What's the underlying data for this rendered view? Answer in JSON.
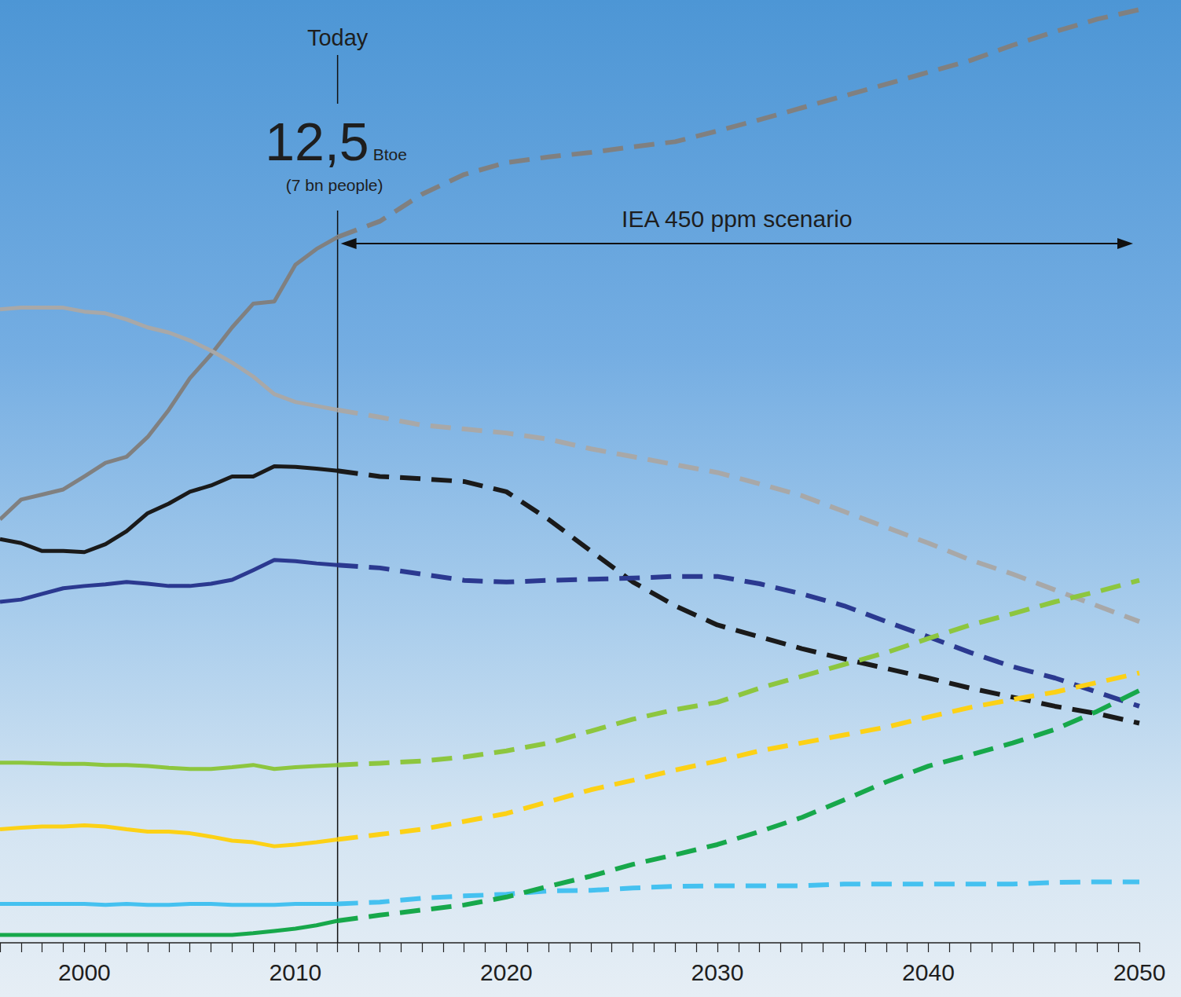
{
  "chart_data": {
    "type": "line",
    "x": [
      1996,
      1997,
      1998,
      1999,
      2000,
      2001,
      2002,
      2003,
      2004,
      2005,
      2006,
      2007,
      2008,
      2009,
      2010,
      2011,
      2012,
      2014,
      2016,
      2018,
      2020,
      2022,
      2024,
      2026,
      2028,
      2030,
      2032,
      2034,
      2036,
      2038,
      2040,
      2042,
      2044,
      2046,
      2048,
      2050
    ],
    "xlim": [
      1996,
      2050
    ],
    "xticks": [
      2000,
      2010,
      2020,
      2030,
      2040,
      2050
    ],
    "ylim": [
      0,
      16.7
    ],
    "tick_labels": "x",
    "grid": false,
    "annotations": [
      {
        "text": "Today",
        "x": 2012
      },
      {
        "text": "12,5",
        "unit": "Btoe",
        "subtext": "(7 bn people)",
        "x": 2012
      },
      {
        "text": "IEA 450 ppm scenario",
        "x": [
          2012,
          2050
        ]
      }
    ],
    "series": [
      {
        "color": "#808080",
        "line_style": "solid",
        "values": [
          7.5,
          7.85,
          7.94,
          8.03,
          8.26,
          8.5,
          8.61,
          8.96,
          9.44,
          10.0,
          10.42,
          10.9,
          11.32,
          11.36,
          12.01,
          12.29,
          12.5,
          null,
          null,
          null,
          null,
          null,
          null,
          null,
          null,
          null,
          null,
          null,
          null,
          null,
          null,
          null,
          null,
          null,
          null,
          null
        ]
      },
      {
        "color": "#808080",
        "line_style": "dashed",
        "values": [
          null,
          null,
          null,
          null,
          null,
          null,
          null,
          null,
          null,
          null,
          null,
          null,
          null,
          null,
          null,
          null,
          12.5,
          12.78,
          13.26,
          13.61,
          13.82,
          13.92,
          14.0,
          14.1,
          14.19,
          14.38,
          14.58,
          14.79,
          15.0,
          15.21,
          15.42,
          15.63,
          15.9,
          16.14,
          16.36,
          16.53
        ]
      },
      {
        "color": "#a8a8a8",
        "line_style": "solid",
        "values": [
          11.22,
          11.25,
          11.25,
          11.25,
          11.18,
          11.15,
          11.04,
          10.9,
          10.81,
          10.67,
          10.49,
          10.28,
          10.03,
          9.72,
          9.58,
          9.51,
          9.44,
          null,
          null,
          null,
          null,
          null,
          null,
          null,
          null,
          null,
          null,
          null,
          null,
          null,
          null,
          null,
          null,
          null,
          null,
          null
        ]
      },
      {
        "color": "#a8a8a8",
        "line_style": "dashed",
        "values": [
          null,
          null,
          null,
          null,
          null,
          null,
          null,
          null,
          null,
          null,
          null,
          null,
          null,
          null,
          null,
          null,
          9.44,
          9.31,
          9.17,
          9.1,
          9.03,
          8.92,
          8.75,
          8.61,
          8.47,
          8.33,
          8.13,
          7.92,
          7.64,
          7.36,
          7.08,
          6.78,
          6.53,
          6.25,
          5.97,
          5.69
        ]
      },
      {
        "color": "#1a1a1a",
        "line_style": "solid",
        "values": [
          7.15,
          7.08,
          6.94,
          6.94,
          6.92,
          7.06,
          7.29,
          7.61,
          7.78,
          7.99,
          8.1,
          8.26,
          8.26,
          8.44,
          8.43,
          8.4,
          8.36,
          null,
          null,
          null,
          null,
          null,
          null,
          null,
          null,
          null,
          null,
          null,
          null,
          null,
          null,
          null,
          null,
          null,
          null,
          null
        ]
      },
      {
        "color": "#1a1a1a",
        "line_style": "dashed",
        "values": [
          null,
          null,
          null,
          null,
          null,
          null,
          null,
          null,
          null,
          null,
          null,
          null,
          null,
          null,
          null,
          null,
          8.36,
          8.26,
          8.22,
          8.17,
          7.99,
          7.5,
          6.94,
          6.39,
          5.97,
          5.63,
          5.42,
          5.21,
          5.03,
          4.86,
          4.69,
          4.51,
          4.35,
          4.19,
          4.06,
          3.89
        ]
      },
      {
        "color": "#2b3990",
        "line_style": "solid",
        "values": [
          6.04,
          6.08,
          6.18,
          6.28,
          6.32,
          6.35,
          6.39,
          6.36,
          6.32,
          6.32,
          6.36,
          6.43,
          6.6,
          6.78,
          6.76,
          6.72,
          6.69,
          null,
          null,
          null,
          null,
          null,
          null,
          null,
          null,
          null,
          null,
          null,
          null,
          null,
          null,
          null,
          null,
          null,
          null,
          null
        ]
      },
      {
        "color": "#2b3990",
        "line_style": "dashed",
        "values": [
          null,
          null,
          null,
          null,
          null,
          null,
          null,
          null,
          null,
          null,
          null,
          null,
          null,
          null,
          null,
          null,
          6.69,
          6.64,
          6.53,
          6.42,
          6.39,
          6.42,
          6.44,
          6.46,
          6.49,
          6.49,
          6.36,
          6.18,
          5.97,
          5.69,
          5.42,
          5.14,
          4.89,
          4.69,
          4.44,
          4.19
        ]
      },
      {
        "color": "#8dc63f",
        "line_style": "solid",
        "values": [
          3.19,
          3.19,
          3.18,
          3.17,
          3.17,
          3.15,
          3.15,
          3.13,
          3.1,
          3.08,
          3.08,
          3.11,
          3.15,
          3.08,
          3.11,
          3.13,
          3.15,
          null,
          null,
          null,
          null,
          null,
          null,
          null,
          null,
          null,
          null,
          null,
          null,
          null,
          null,
          null,
          null,
          null,
          null,
          null
        ]
      },
      {
        "color": "#8dc63f",
        "line_style": "dashed",
        "values": [
          null,
          null,
          null,
          null,
          null,
          null,
          null,
          null,
          null,
          null,
          null,
          null,
          null,
          null,
          null,
          null,
          3.15,
          3.18,
          3.22,
          3.29,
          3.4,
          3.54,
          3.75,
          3.96,
          4.13,
          4.26,
          4.51,
          4.72,
          4.93,
          5.14,
          5.39,
          5.63,
          5.83,
          6.04,
          6.22,
          6.42
        ]
      },
      {
        "color": "#fcd116",
        "line_style": "solid",
        "values": [
          2.01,
          2.04,
          2.06,
          2.06,
          2.08,
          2.06,
          2.01,
          1.97,
          1.97,
          1.94,
          1.88,
          1.81,
          1.78,
          1.71,
          1.74,
          1.78,
          1.83,
          null,
          null,
          null,
          null,
          null,
          null,
          null,
          null,
          null,
          null,
          null,
          null,
          null,
          null,
          null,
          null,
          null,
          null,
          null
        ]
      },
      {
        "color": "#fcd116",
        "line_style": "dashed",
        "values": [
          null,
          null,
          null,
          null,
          null,
          null,
          null,
          null,
          null,
          null,
          null,
          null,
          null,
          null,
          null,
          null,
          1.83,
          1.92,
          2.01,
          2.15,
          2.29,
          2.5,
          2.71,
          2.88,
          3.06,
          3.22,
          3.4,
          3.54,
          3.68,
          3.82,
          4.0,
          4.17,
          4.31,
          4.44,
          4.61,
          4.78
        ]
      },
      {
        "color": "#45c1f0",
        "line_style": "solid",
        "values": [
          0.69,
          0.69,
          0.69,
          0.69,
          0.69,
          0.67,
          0.69,
          0.67,
          0.67,
          0.69,
          0.69,
          0.67,
          0.67,
          0.67,
          0.69,
          0.69,
          0.69,
          null,
          null,
          null,
          null,
          null,
          null,
          null,
          null,
          null,
          null,
          null,
          null,
          null,
          null,
          null,
          null,
          null,
          null,
          null
        ]
      },
      {
        "color": "#45c1f0",
        "line_style": "dashed",
        "values": [
          null,
          null,
          null,
          null,
          null,
          null,
          null,
          null,
          null,
          null,
          null,
          null,
          null,
          null,
          null,
          null,
          0.69,
          0.72,
          0.79,
          0.83,
          0.86,
          0.92,
          0.93,
          0.97,
          1.0,
          1.01,
          1.01,
          1.01,
          1.04,
          1.04,
          1.04,
          1.04,
          1.04,
          1.07,
          1.08,
          1.08
        ]
      },
      {
        "color": "#17a84b",
        "line_style": "solid",
        "values": [
          0.14,
          0.14,
          0.14,
          0.14,
          0.14,
          0.14,
          0.14,
          0.14,
          0.14,
          0.14,
          0.14,
          0.14,
          0.17,
          0.21,
          0.25,
          0.31,
          0.39,
          null,
          null,
          null,
          null,
          null,
          null,
          null,
          null,
          null,
          null,
          null,
          null,
          null,
          null,
          null,
          null,
          null,
          null,
          null
        ]
      },
      {
        "color": "#17a84b",
        "line_style": "dashed",
        "values": [
          null,
          null,
          null,
          null,
          null,
          null,
          null,
          null,
          null,
          null,
          null,
          null,
          null,
          null,
          null,
          null,
          0.39,
          0.49,
          0.58,
          0.67,
          0.81,
          1.0,
          1.18,
          1.39,
          1.56,
          1.74,
          1.97,
          2.22,
          2.53,
          2.85,
          3.13,
          3.33,
          3.54,
          3.78,
          4.1,
          4.47
        ]
      }
    ]
  }
}
